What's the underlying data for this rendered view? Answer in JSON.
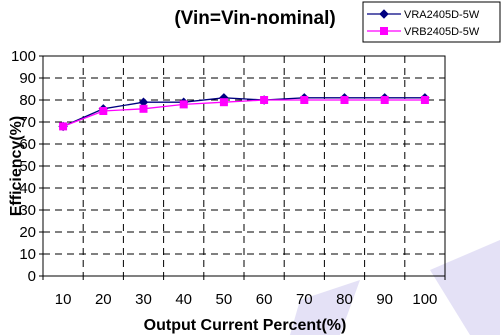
{
  "chart_data": {
    "type": "line",
    "title": "(Vin=Vin-nominal)",
    "xlabel": "Output Current Percent(%)",
    "ylabel": "Efficiency(%)",
    "x": [
      10,
      20,
      30,
      40,
      50,
      60,
      70,
      80,
      90,
      100
    ],
    "ylim": [
      0,
      100
    ],
    "yticks": [
      0,
      10,
      20,
      30,
      40,
      50,
      60,
      70,
      80,
      90,
      100
    ],
    "grid": true,
    "legend_position": "top-right",
    "series": [
      {
        "name": "VRA2405D-5W",
        "marker": "diamond",
        "color": "#000080",
        "values": [
          68,
          76,
          79,
          79,
          81,
          80,
          81,
          81,
          81,
          81
        ]
      },
      {
        "name": "VRB2405D-5W",
        "marker": "square",
        "color": "#ff00ff",
        "values": [
          68,
          75,
          76,
          78,
          79,
          80,
          80,
          80,
          80,
          80
        ]
      }
    ]
  }
}
